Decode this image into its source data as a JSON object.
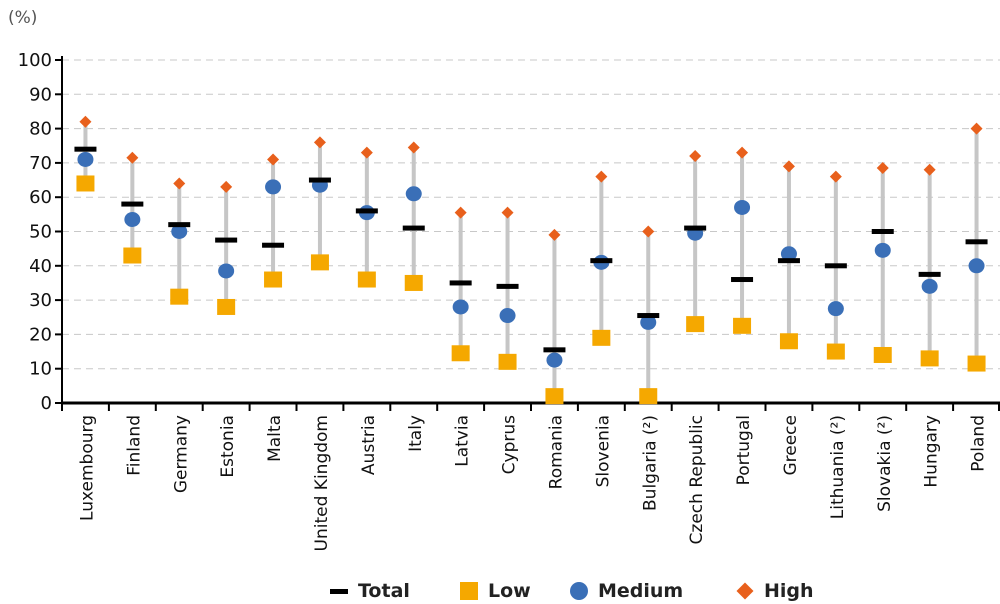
{
  "chart_data": {
    "type": "scatter",
    "unit_label": "(%)",
    "ylim": [
      0,
      100
    ],
    "yticks": [
      0,
      10,
      20,
      30,
      40,
      50,
      60,
      70,
      80,
      90,
      100
    ],
    "grid": true,
    "legend_position": "bottom",
    "categories": [
      "Luxembourg",
      "Finland",
      "Germany",
      "Estonia",
      "Malta",
      "United Kingdom",
      "Austria",
      "Italy",
      "Latvia",
      "Cyprus",
      "Romania",
      "Slovenia",
      "Bulgaria (²)",
      "Czech Republic",
      "Portugal",
      "Greece",
      "Lithuania (²)",
      "Slovakia (²)",
      "Hungary",
      "Poland"
    ],
    "series": [
      {
        "name": "Total",
        "marker": "dash",
        "color": "#000000",
        "values": [
          74,
          58,
          52,
          47.5,
          46,
          65,
          56,
          51,
          35,
          34,
          15.5,
          41.5,
          25.5,
          51,
          36,
          41.5,
          40,
          50,
          37.5,
          47
        ]
      },
      {
        "name": "Low",
        "marker": "square",
        "color": "#F5A800",
        "values": [
          64,
          43,
          31,
          28,
          36,
          41,
          36,
          35,
          14.5,
          12,
          2,
          19,
          2,
          23,
          22.5,
          18,
          15,
          14,
          13,
          11.5
        ]
      },
      {
        "name": "Medium",
        "marker": "circle",
        "color": "#3A6FB7",
        "values": [
          71,
          53.5,
          50,
          38.5,
          63,
          63.5,
          55.5,
          61,
          28,
          25.5,
          12.5,
          41,
          23.5,
          49.5,
          57,
          43.5,
          27.5,
          44.5,
          34,
          40
        ]
      },
      {
        "name": "High",
        "marker": "diamond",
        "color": "#E8601C",
        "values": [
          82,
          71.5,
          64,
          63,
          71,
          76,
          73,
          74.5,
          55.5,
          55.5,
          49,
          66,
          50,
          72,
          73,
          69,
          66,
          68.5,
          68,
          80
        ]
      }
    ]
  }
}
